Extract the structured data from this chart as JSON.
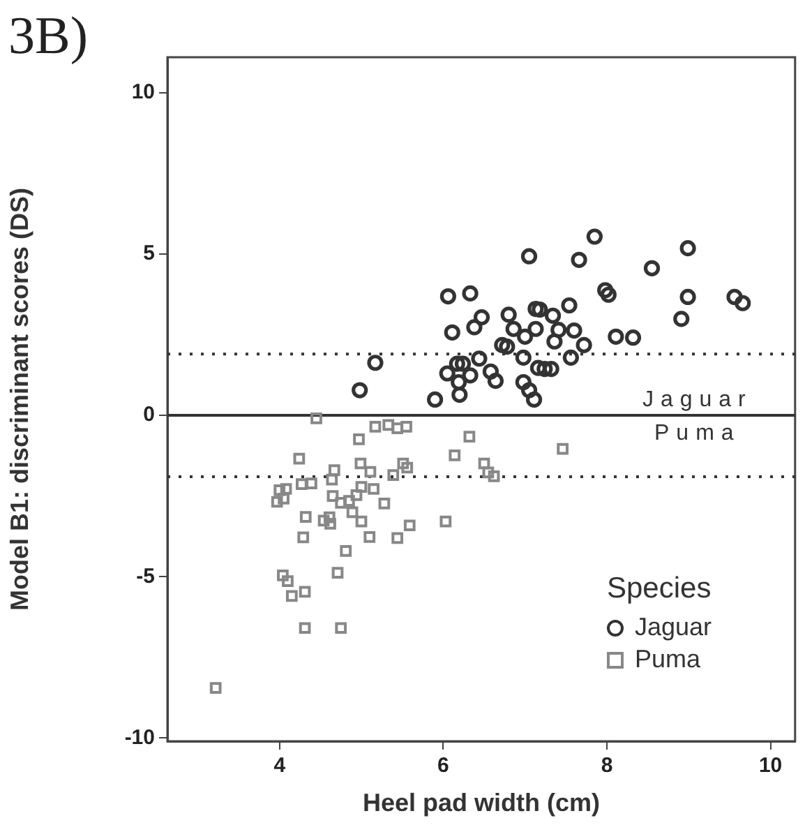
{
  "chart_data": {
    "type": "scatter",
    "title": "3B)",
    "xlabel": "Heel pad width (cm)",
    "ylabel": "Model B1: discriminant scores (DS)",
    "legend_title": "Species",
    "legend": "bottom right",
    "grid": false,
    "xlim": [
      2.63,
      10.3
    ],
    "ylim": [
      -10.1,
      11.1
    ],
    "xticks": [
      4,
      6,
      8,
      10
    ],
    "yticks": [
      -10,
      -5,
      0,
      5,
      10
    ],
    "ref_lines": [
      {
        "axis": "y",
        "value": 1.9,
        "line_style": "dotted",
        "color": "#333333"
      },
      {
        "axis": "y",
        "value": 0,
        "line_style": "solid",
        "color": "#333333"
      },
      {
        "axis": "y",
        "value": -1.9,
        "line_style": "dotted",
        "color": "#333333"
      }
    ],
    "annotations": [
      "Jaguar",
      "Puma"
    ],
    "series": [
      {
        "name": "Jaguar",
        "color": "#333333",
        "marker": "circle",
        "x": [
          7.05,
          6.06,
          6.33,
          6.47,
          6.38,
          6.11,
          6.8,
          6.86,
          7.13,
          7.18,
          7.13,
          7.0,
          6.72,
          6.78,
          6.98,
          5.17,
          6.44,
          6.17,
          6.24,
          6.05,
          6.33,
          6.19,
          6.58,
          6.64,
          6.2,
          5.9,
          4.98,
          6.98,
          7.05,
          7.11,
          7.16,
          7.24,
          7.32,
          7.34,
          7.36,
          7.85,
          7.66,
          8.55,
          8.99,
          7.98,
          8.02,
          8.99,
          9.56,
          9.66,
          8.91,
          7.54,
          7.41,
          7.6,
          7.72,
          8.11,
          8.32,
          7.56
        ],
        "values": [
          4.93,
          3.69,
          3.78,
          3.04,
          2.73,
          2.57,
          3.12,
          2.68,
          3.3,
          3.28,
          2.68,
          2.44,
          2.18,
          2.13,
          1.79,
          1.63,
          1.76,
          1.6,
          1.6,
          1.3,
          1.24,
          1.03,
          1.36,
          1.07,
          0.64,
          0.49,
          0.78,
          1.03,
          0.78,
          0.49,
          1.47,
          1.44,
          1.44,
          3.09,
          2.29,
          5.54,
          4.82,
          4.56,
          5.18,
          3.88,
          3.74,
          3.67,
          3.67,
          3.48,
          2.99,
          3.41,
          2.65,
          2.63,
          2.18,
          2.44,
          2.41,
          1.79
        ]
      },
      {
        "name": "Puma",
        "color": "#888888",
        "marker": "square",
        "x": [
          4.45,
          5.17,
          5.33,
          5.44,
          5.55,
          4.97,
          6.32,
          4.24,
          6.14,
          4.99,
          5.11,
          5.51,
          5.56,
          5.39,
          6.5,
          6.55,
          6.62,
          4.67,
          4.64,
          4.27,
          4.39,
          4.0,
          4.08,
          3.97,
          4.05,
          5.0,
          5.15,
          4.94,
          4.65,
          4.75,
          4.85,
          5.28,
          4.89,
          4.32,
          4.54,
          4.61,
          4.62,
          5.0,
          6.03,
          5.59,
          4.29,
          5.1,
          5.44,
          4.81,
          4.71,
          4.04,
          4.1,
          4.15,
          4.31,
          4.31,
          4.75,
          3.22,
          7.46
        ],
        "values": [
          -0.09,
          -0.35,
          -0.3,
          -0.4,
          -0.35,
          -0.74,
          -0.66,
          -1.34,
          -1.24,
          -1.49,
          -1.75,
          -1.49,
          -1.62,
          -1.85,
          -1.49,
          -1.77,
          -1.89,
          -1.7,
          -1.99,
          -2.13,
          -2.11,
          -2.32,
          -2.28,
          -2.68,
          -2.58,
          -2.22,
          -2.28,
          -2.47,
          -2.5,
          -2.71,
          -2.65,
          -2.73,
          -3.0,
          -3.15,
          -3.26,
          -3.16,
          -3.36,
          -3.29,
          -3.29,
          -3.41,
          -3.78,
          -3.77,
          -3.8,
          -4.2,
          -4.88,
          -4.96,
          -5.14,
          -5.6,
          -5.47,
          -6.59,
          -6.59,
          -8.45,
          -1.04
        ]
      }
    ]
  }
}
